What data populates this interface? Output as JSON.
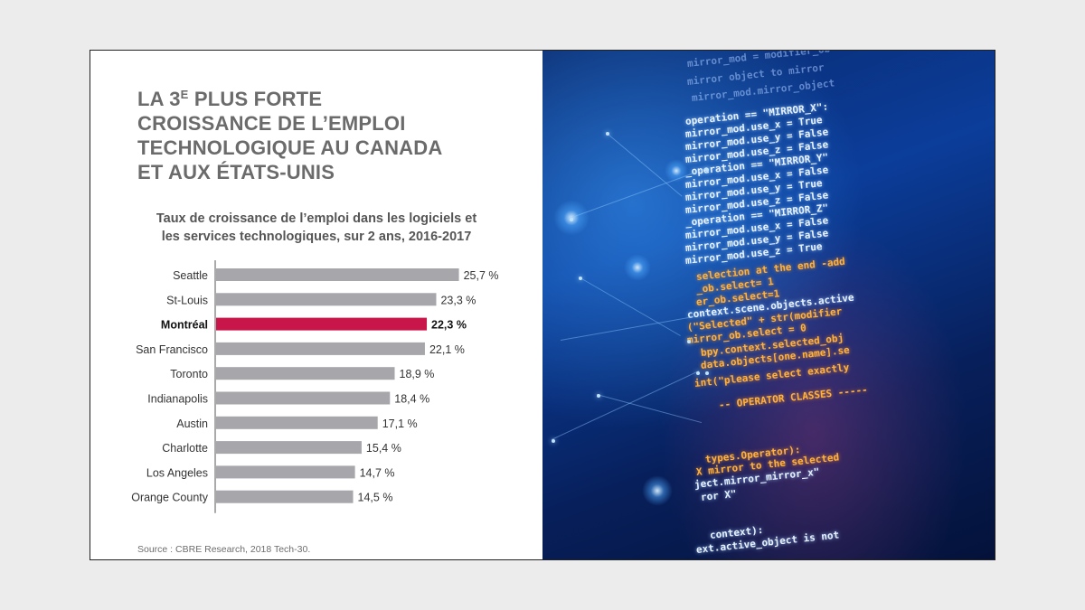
{
  "headline": {
    "line1_pre": "LA 3",
    "line1_sup": "E",
    "line1_post": " PLUS FORTE",
    "line2": "CROISSANCE DE L’EMPLOI",
    "line3": "TECHNOLOGIQUE AU CANADA",
    "line4": "ET AUX ÉTATS-UNIS"
  },
  "subtitle": {
    "line1": "Taux de croissance de l’emploi dans les logiciels et",
    "line2": "les services technologiques, sur 2 ans, 2016-2017"
  },
  "source": "Source : CBRE Research, 2018 Tech-30.",
  "colors": {
    "bar_default": "#a6a6ab",
    "bar_highlight": "#c8164a",
    "headline": "#6b6b6b"
  },
  "chart_data": {
    "type": "bar",
    "orientation": "horizontal",
    "title": "Taux de croissance de l’emploi dans les logiciels et les services technologiques, sur 2 ans, 2016-2017",
    "xlabel": "",
    "ylabel": "",
    "unit": "%",
    "highlight": "Montréal",
    "categories": [
      "Seattle",
      "St-Louis",
      "Montréal",
      "San Francisco",
      "Toronto",
      "Indianapolis",
      "Austin",
      "Charlotte",
      "Los Angeles",
      "Orange County"
    ],
    "values": [
      25.7,
      23.3,
      22.3,
      22.1,
      18.9,
      18.4,
      17.1,
      15.4,
      14.7,
      14.5
    ],
    "value_labels": [
      "25,7 %",
      "23,3 %",
      "22,3 %",
      "22,1 %",
      "18,9 %",
      "18,4 %",
      "17,1 %",
      "15,4 %",
      "14,7 %",
      "14,5 %"
    ]
  },
  "image_panel": {
    "icon": "code-background-image",
    "code_lines": [
      "mirror_mod = modifier_ob",
      "mirror object to mirror",
      "mirror_mod.mirror_object",
      "operation == \"MIRROR_X\":",
      "mirror_mod.use_x = True",
      "mirror_mod.use_y = False",
      "mirror_mod.use_z = False",
      "_operation == \"MIRROR_Y\"",
      "mirror_mod.use_x = False",
      "mirror_mod.use_y = True",
      "mirror_mod.use_z = False",
      "_operation == \"MIRROR_Z\"",
      "mirror_mod.use_x = False",
      "mirror_mod.use_y = False",
      "mirror_mod.use_z = True",
      "selection at the end -add",
      "_ob.select= 1",
      "er_ob.select=1",
      "context.scene.objects.active",
      "(\"Selected\" + str(modifier",
      "mirror_ob.select = 0",
      "bpy.context.selected_obj",
      "data.objects[one.name].se",
      "int(\"please select exactly",
      "-- OPERATOR CLASSES -----",
      "types.Operator):",
      "X mirror to the selected",
      "ject.mirror_mirror_x\"",
      "ror X\"",
      "context):",
      "ext.active_object is not"
    ]
  }
}
